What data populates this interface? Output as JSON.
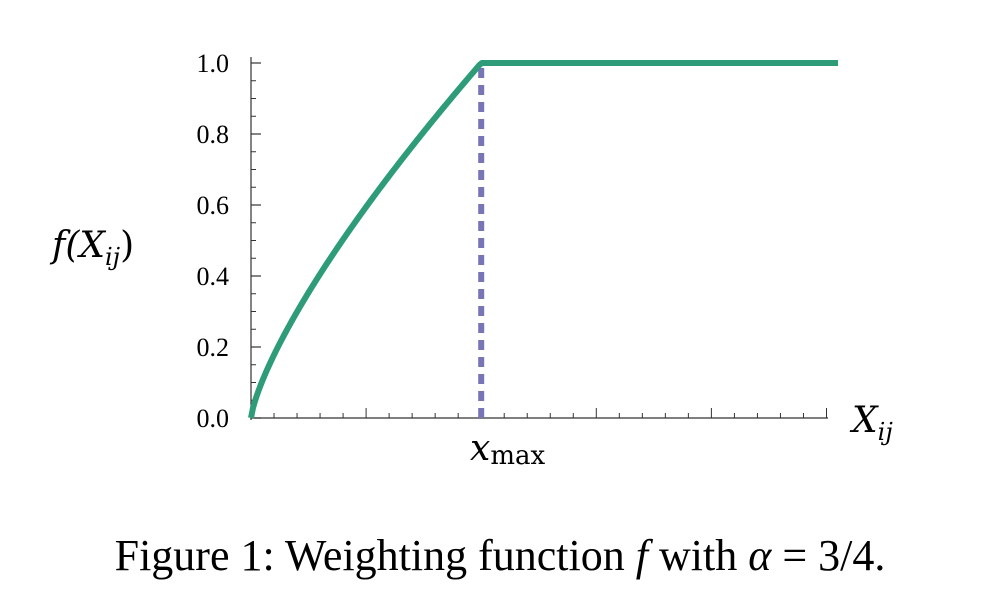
{
  "chart_data": {
    "type": "line",
    "title": "",
    "ylabel": {
      "base": "f(X",
      "sub": "ij",
      "close": ")"
    },
    "xlabel": {
      "base": "X",
      "sub": "ij"
    },
    "xmax_label": {
      "base": "x",
      "sub": "max"
    },
    "ylim": [
      0,
      1.0
    ],
    "xlim": [
      0,
      2.55
    ],
    "yticks": [
      "0.0",
      "0.2",
      "0.4",
      "0.6",
      "0.8",
      "1.0"
    ],
    "ytick_values": [
      0.0,
      0.2,
      0.4,
      0.6,
      0.8,
      1.0
    ],
    "alpha": 0.75,
    "x_max": 1.0,
    "grid": false,
    "series": [
      {
        "color": "#2e9c78",
        "formula": "min((x/x_max)^alpha, 1)"
      }
    ],
    "annotations": [
      {
        "type": "vertical-dashed-line",
        "x": 1.0,
        "color": "#7775b5"
      }
    ]
  },
  "caption": {
    "prefix": "Figure 1: Weighting function ",
    "f": "f",
    "middle": " with ",
    "alpha": "α",
    "suffix": " = 3/4."
  }
}
